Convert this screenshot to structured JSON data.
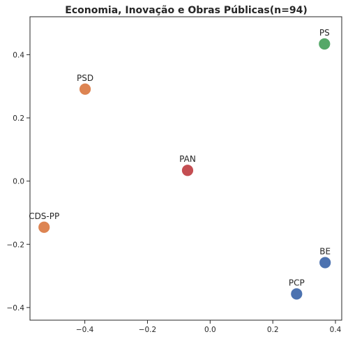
{
  "chart_data": {
    "type": "scatter",
    "title": "Economia, Inovação e Obras Públicas(n=94)",
    "xlabel": "",
    "ylabel": "",
    "xlim": [
      -0.575,
      0.42
    ],
    "ylim": [
      -0.44,
      0.52
    ],
    "xticks": [
      -0.4,
      -0.2,
      0.0,
      0.2,
      0.4
    ],
    "xtick_labels": [
      "−0.4",
      "−0.2",
      "0.0",
      "0.2",
      "0.4"
    ],
    "yticks": [
      -0.4,
      -0.2,
      0.0,
      0.2,
      0.4
    ],
    "ytick_labels": [
      "−0.4",
      "−0.2",
      "0.0",
      "0.2",
      "0.4"
    ],
    "grid": false,
    "points": [
      {
        "label": "PS",
        "x": 0.365,
        "y": 0.434,
        "color": "#55a868"
      },
      {
        "label": "PSD",
        "x": -0.399,
        "y": 0.291,
        "color": "#dd8452"
      },
      {
        "label": "PAN",
        "x": -0.072,
        "y": 0.034,
        "color": "#c44e52"
      },
      {
        "label": "CDS-PP",
        "x": -0.53,
        "y": -0.146,
        "color": "#dd8452"
      },
      {
        "label": "BE",
        "x": 0.367,
        "y": -0.258,
        "color": "#4c72b0"
      },
      {
        "label": "PCP",
        "x": 0.276,
        "y": -0.357,
        "color": "#4c72b0"
      }
    ]
  }
}
